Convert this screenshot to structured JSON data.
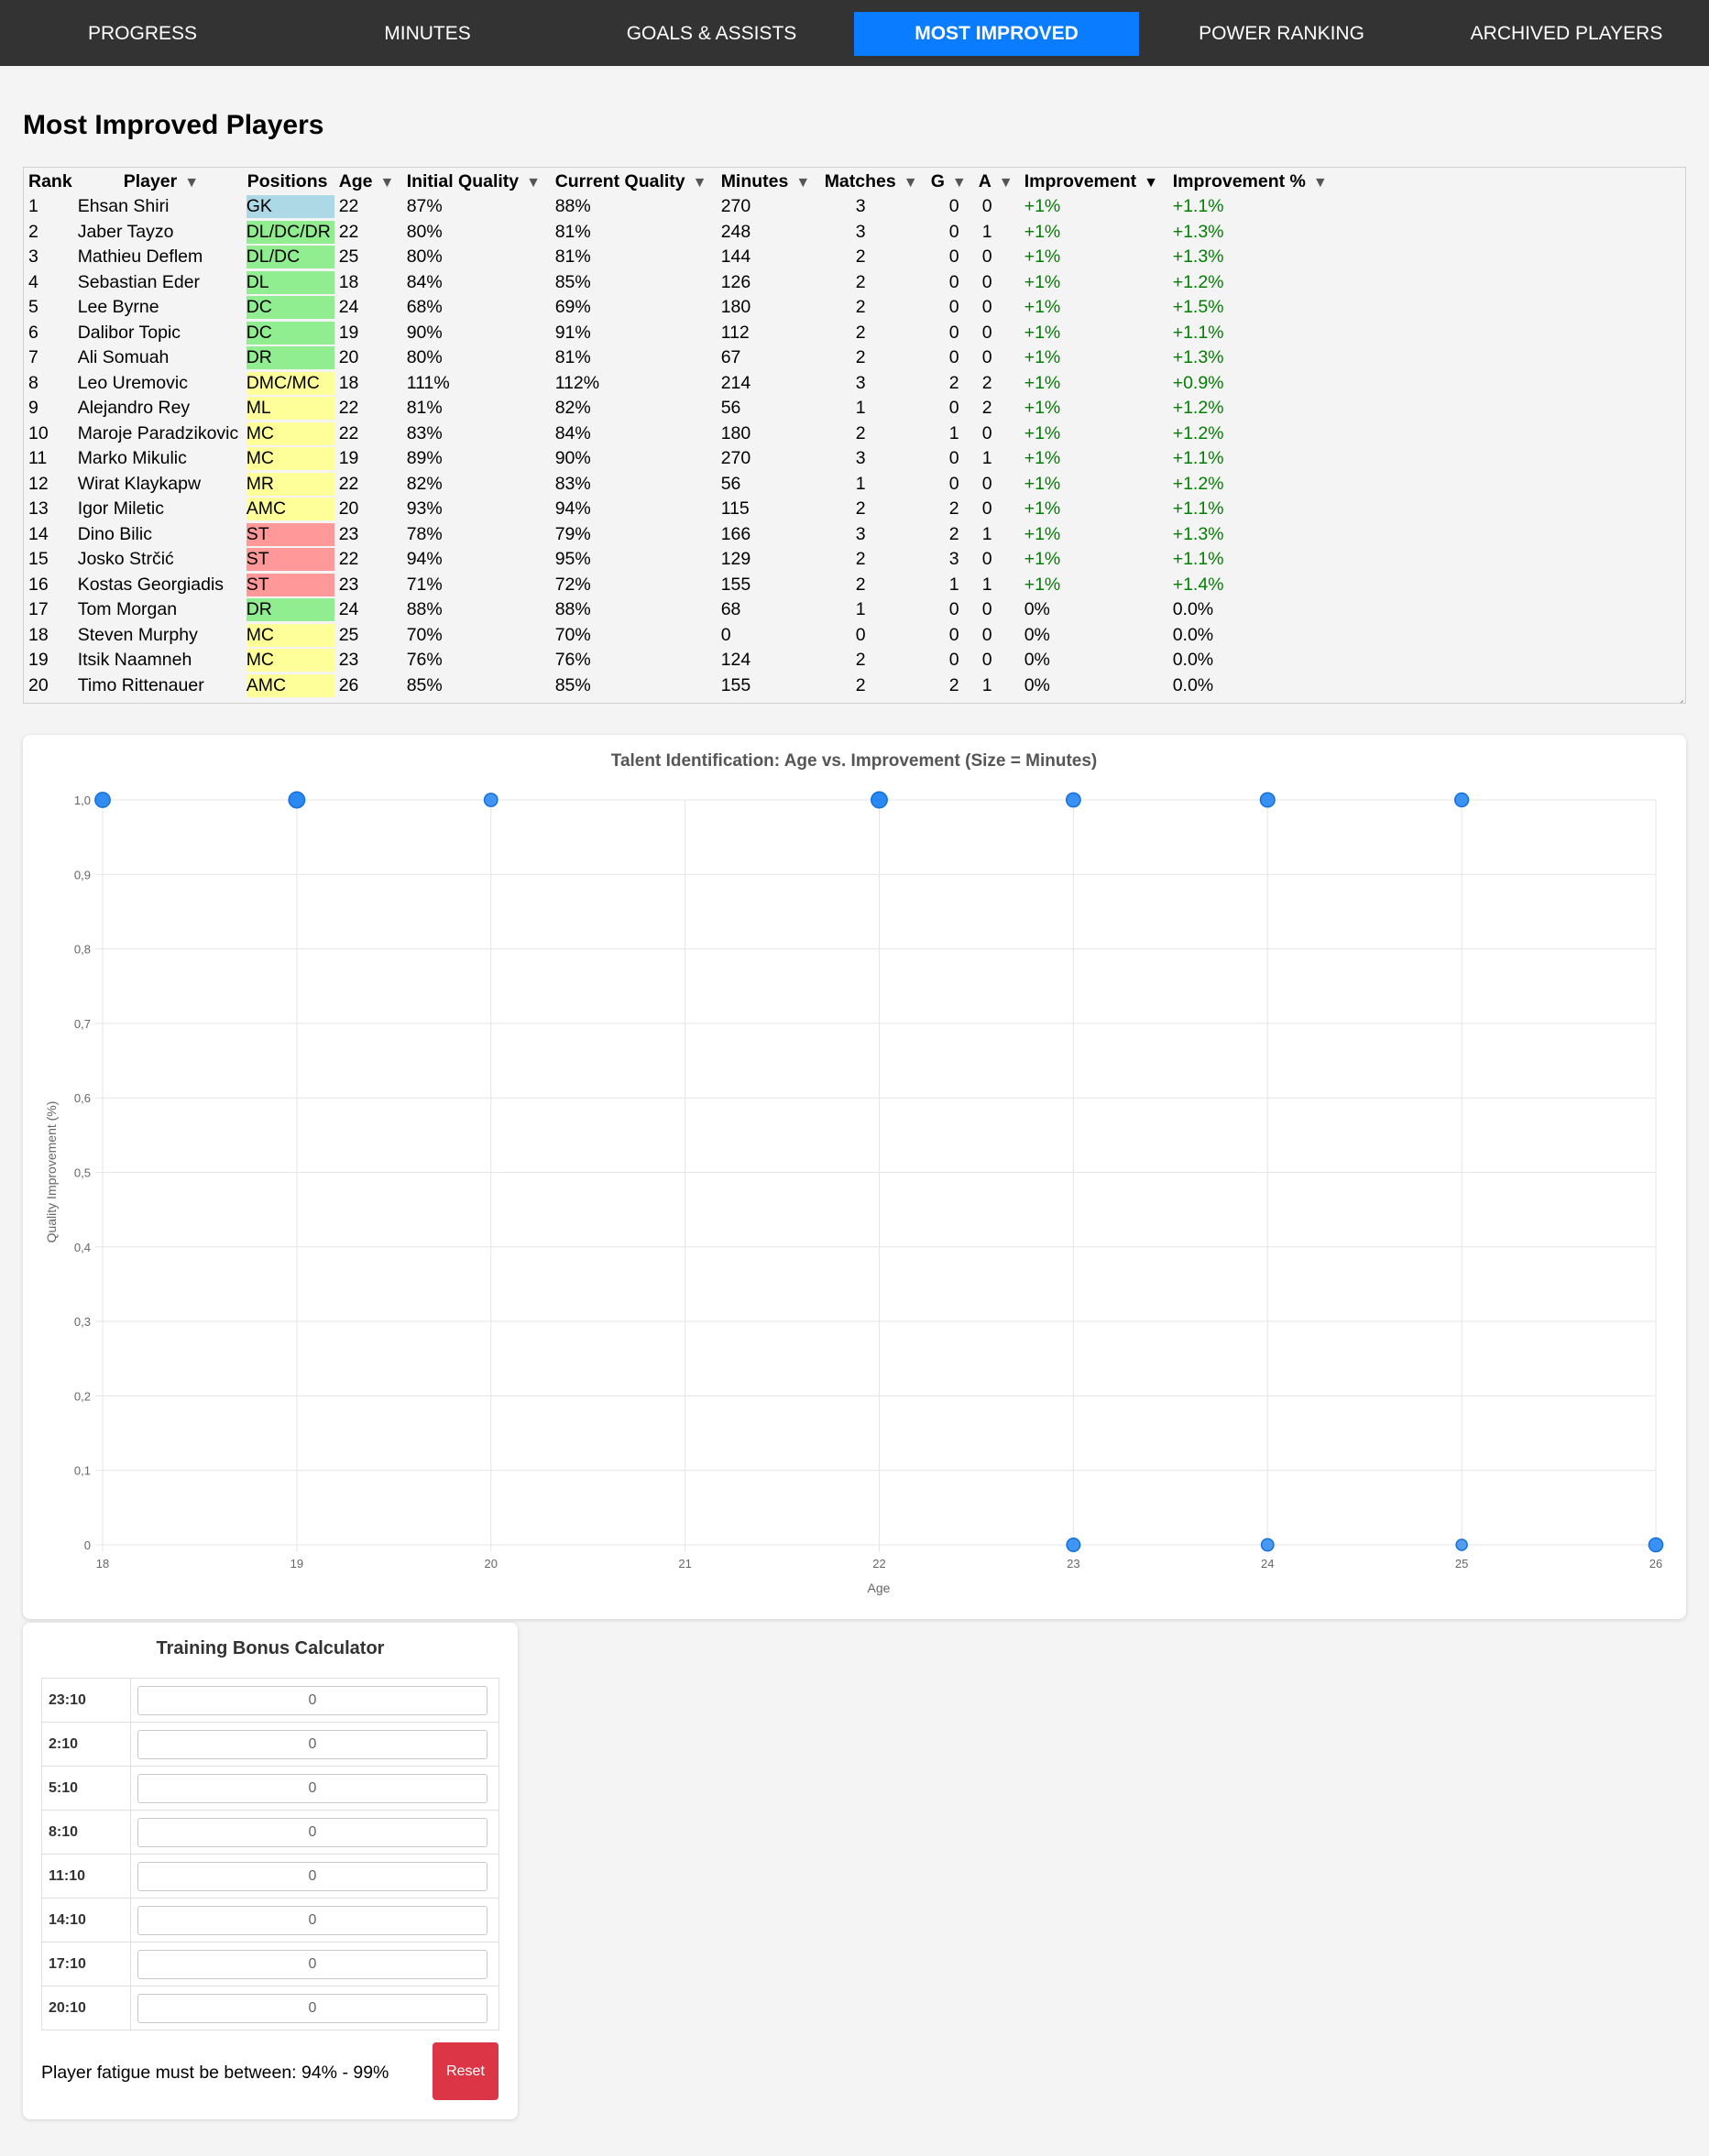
{
  "nav": {
    "items": [
      {
        "label": "PROGRESS",
        "active": false
      },
      {
        "label": "MINUTES",
        "active": false
      },
      {
        "label": "GOALS & ASSISTS",
        "active": false
      },
      {
        "label": "MOST IMPROVED",
        "active": true
      },
      {
        "label": "POWER RANKING",
        "active": false
      },
      {
        "label": "ARCHIVED PLAYERS",
        "active": false
      }
    ],
    "active_color": "#0a7cff",
    "bar_color": "#333333"
  },
  "page": {
    "title": "Most Improved Players"
  },
  "table": {
    "headers": {
      "rank": "Rank",
      "player": "Player",
      "positions": "Positions",
      "age": "Age",
      "initial_quality": "Initial Quality",
      "current_quality": "Current Quality",
      "minutes": "Minutes",
      "matches": "Matches",
      "goals": "G",
      "assists": "A",
      "improvement": "Improvement",
      "improvement_pct": "Improvement %"
    },
    "sort_icon": "▼",
    "sorted_column": "improvement",
    "position_colors": {
      "GK": "#add8e6",
      "DEF": "#90ee90",
      "MID": "#ffff99",
      "ATT": "#ff9999"
    },
    "rows": [
      {
        "rank": "1",
        "player": "Ehsan Shiri",
        "positions": "GK",
        "group": "gk",
        "age": "22",
        "initial": "87%",
        "current": "88%",
        "minutes": "270",
        "matches": "3",
        "g": "0",
        "a": "0",
        "improvement": "+1%",
        "improvement_pct": "+1.1%",
        "positive": true
      },
      {
        "rank": "2",
        "player": "Jaber Tayzo",
        "positions": "DL/DC/DR",
        "group": "def",
        "age": "22",
        "initial": "80%",
        "current": "81%",
        "minutes": "248",
        "matches": "3",
        "g": "0",
        "a": "1",
        "improvement": "+1%",
        "improvement_pct": "+1.3%",
        "positive": true
      },
      {
        "rank": "3",
        "player": "Mathieu Deflem",
        "positions": "DL/DC",
        "group": "def",
        "age": "25",
        "initial": "80%",
        "current": "81%",
        "minutes": "144",
        "matches": "2",
        "g": "0",
        "a": "0",
        "improvement": "+1%",
        "improvement_pct": "+1.3%",
        "positive": true
      },
      {
        "rank": "4",
        "player": "Sebastian Eder",
        "positions": "DL",
        "group": "def",
        "age": "18",
        "initial": "84%",
        "current": "85%",
        "minutes": "126",
        "matches": "2",
        "g": "0",
        "a": "0",
        "improvement": "+1%",
        "improvement_pct": "+1.2%",
        "positive": true
      },
      {
        "rank": "5",
        "player": "Lee Byrne",
        "positions": "DC",
        "group": "def",
        "age": "24",
        "initial": "68%",
        "current": "69%",
        "minutes": "180",
        "matches": "2",
        "g": "0",
        "a": "0",
        "improvement": "+1%",
        "improvement_pct": "+1.5%",
        "positive": true
      },
      {
        "rank": "6",
        "player": "Dalibor Topic",
        "positions": "DC",
        "group": "def",
        "age": "19",
        "initial": "90%",
        "current": "91%",
        "minutes": "112",
        "matches": "2",
        "g": "0",
        "a": "0",
        "improvement": "+1%",
        "improvement_pct": "+1.1%",
        "positive": true
      },
      {
        "rank": "7",
        "player": "Ali Somuah",
        "positions": "DR",
        "group": "def",
        "age": "20",
        "initial": "80%",
        "current": "81%",
        "minutes": "67",
        "matches": "2",
        "g": "0",
        "a": "0",
        "improvement": "+1%",
        "improvement_pct": "+1.3%",
        "positive": true
      },
      {
        "rank": "8",
        "player": "Leo Uremovic",
        "positions": "DMC/MC",
        "group": "mid",
        "age": "18",
        "initial": "111%",
        "current": "112%",
        "minutes": "214",
        "matches": "3",
        "g": "2",
        "a": "2",
        "improvement": "+1%",
        "improvement_pct": "+0.9%",
        "positive": true
      },
      {
        "rank": "9",
        "player": "Alejandro Rey",
        "positions": "ML",
        "group": "mid",
        "age": "22",
        "initial": "81%",
        "current": "82%",
        "minutes": "56",
        "matches": "1",
        "g": "0",
        "a": "2",
        "improvement": "+1%",
        "improvement_pct": "+1.2%",
        "positive": true
      },
      {
        "rank": "10",
        "player": "Maroje Paradzikovic",
        "positions": "MC",
        "group": "mid",
        "age": "22",
        "initial": "83%",
        "current": "84%",
        "minutes": "180",
        "matches": "2",
        "g": "1",
        "a": "0",
        "improvement": "+1%",
        "improvement_pct": "+1.2%",
        "positive": true
      },
      {
        "rank": "11",
        "player": "Marko Mikulic",
        "positions": "MC",
        "group": "mid",
        "age": "19",
        "initial": "89%",
        "current": "90%",
        "minutes": "270",
        "matches": "3",
        "g": "0",
        "a": "1",
        "improvement": "+1%",
        "improvement_pct": "+1.1%",
        "positive": true
      },
      {
        "rank": "12",
        "player": "Wirat Klaykapw",
        "positions": "MR",
        "group": "mid",
        "age": "22",
        "initial": "82%",
        "current": "83%",
        "minutes": "56",
        "matches": "1",
        "g": "0",
        "a": "0",
        "improvement": "+1%",
        "improvement_pct": "+1.2%",
        "positive": true
      },
      {
        "rank": "13",
        "player": "Igor Miletic",
        "positions": "AMC",
        "group": "mid",
        "age": "20",
        "initial": "93%",
        "current": "94%",
        "minutes": "115",
        "matches": "2",
        "g": "2",
        "a": "0",
        "improvement": "+1%",
        "improvement_pct": "+1.1%",
        "positive": true
      },
      {
        "rank": "14",
        "player": "Dino Bilic",
        "positions": "ST",
        "group": "att",
        "age": "23",
        "initial": "78%",
        "current": "79%",
        "minutes": "166",
        "matches": "3",
        "g": "2",
        "a": "1",
        "improvement": "+1%",
        "improvement_pct": "+1.3%",
        "positive": true
      },
      {
        "rank": "15",
        "player": "Josko Strčić",
        "positions": "ST",
        "group": "att",
        "age": "22",
        "initial": "94%",
        "current": "95%",
        "minutes": "129",
        "matches": "2",
        "g": "3",
        "a": "0",
        "improvement": "+1%",
        "improvement_pct": "+1.1%",
        "positive": true
      },
      {
        "rank": "16",
        "player": "Kostas Georgiadis",
        "positions": "ST",
        "group": "att",
        "age": "23",
        "initial": "71%",
        "current": "72%",
        "minutes": "155",
        "matches": "2",
        "g": "1",
        "a": "1",
        "improvement": "+1%",
        "improvement_pct": "+1.4%",
        "positive": true
      },
      {
        "rank": "17",
        "player": "Tom Morgan",
        "positions": "DR",
        "group": "def",
        "age": "24",
        "initial": "88%",
        "current": "88%",
        "minutes": "68",
        "matches": "1",
        "g": "0",
        "a": "0",
        "improvement": "0%",
        "improvement_pct": "0.0%",
        "positive": false
      },
      {
        "rank": "18",
        "player": "Steven Murphy",
        "positions": "MC",
        "group": "mid",
        "age": "25",
        "initial": "70%",
        "current": "70%",
        "minutes": "0",
        "matches": "0",
        "g": "0",
        "a": "0",
        "improvement": "0%",
        "improvement_pct": "0.0%",
        "positive": false
      },
      {
        "rank": "19",
        "player": "Itsik Naamneh",
        "positions": "MC",
        "group": "mid",
        "age": "23",
        "initial": "76%",
        "current": "76%",
        "minutes": "124",
        "matches": "2",
        "g": "0",
        "a": "0",
        "improvement": "0%",
        "improvement_pct": "0.0%",
        "positive": false
      },
      {
        "rank": "20",
        "player": "Timo Rittenauer",
        "positions": "AMC",
        "group": "mid",
        "age": "26",
        "initial": "85%",
        "current": "85%",
        "minutes": "155",
        "matches": "2",
        "g": "2",
        "a": "1",
        "improvement": "0%",
        "improvement_pct": "0.0%",
        "positive": false
      }
    ]
  },
  "chart_data": {
    "type": "scatter",
    "title": "Talent Identification: Age vs. Improvement (Size = Minutes)",
    "xlabel": "Age",
    "ylabel": "Quality Improvement (%)",
    "xlim": [
      18,
      26
    ],
    "ylim": [
      0,
      1.0
    ],
    "x_ticks": [
      "18",
      "19",
      "20",
      "21",
      "22",
      "23",
      "24",
      "25",
      "26"
    ],
    "y_ticks": [
      "0",
      "0,1",
      "0,2",
      "0,3",
      "0,4",
      "0,5",
      "0,6",
      "0,7",
      "0,8",
      "0,9",
      "1,0"
    ],
    "grid": true,
    "legend": "none",
    "point_color": "#1a7ff2",
    "points": [
      {
        "x": 18,
        "y": 1.0,
        "minutes": 214
      },
      {
        "x": 19,
        "y": 1.0,
        "minutes": 270
      },
      {
        "x": 20,
        "y": 1.0,
        "minutes": 115
      },
      {
        "x": 22,
        "y": 1.0,
        "minutes": 270
      },
      {
        "x": 23,
        "y": 1.0,
        "minutes": 166
      },
      {
        "x": 24,
        "y": 1.0,
        "minutes": 180
      },
      {
        "x": 25,
        "y": 1.0,
        "minutes": 144
      },
      {
        "x": 23,
        "y": 0,
        "minutes": 124
      },
      {
        "x": 24,
        "y": 0,
        "minutes": 68
      },
      {
        "x": 25,
        "y": 0,
        "minutes": 0
      },
      {
        "x": 26,
        "y": 0,
        "minutes": 155
      }
    ]
  },
  "calculator": {
    "title": "Training Bonus Calculator",
    "rows": [
      {
        "time": "23:10",
        "value": "0"
      },
      {
        "time": "2:10",
        "value": "0"
      },
      {
        "time": "5:10",
        "value": "0"
      },
      {
        "time": "8:10",
        "value": "0"
      },
      {
        "time": "11:10",
        "value": "0"
      },
      {
        "time": "14:10",
        "value": "0"
      },
      {
        "time": "17:10",
        "value": "0"
      },
      {
        "time": "20:10",
        "value": "0"
      }
    ],
    "fatigue_text": "Player fatigue must be between: 94% - 99%",
    "reset_label": "Reset",
    "reset_color": "#dc3545"
  }
}
